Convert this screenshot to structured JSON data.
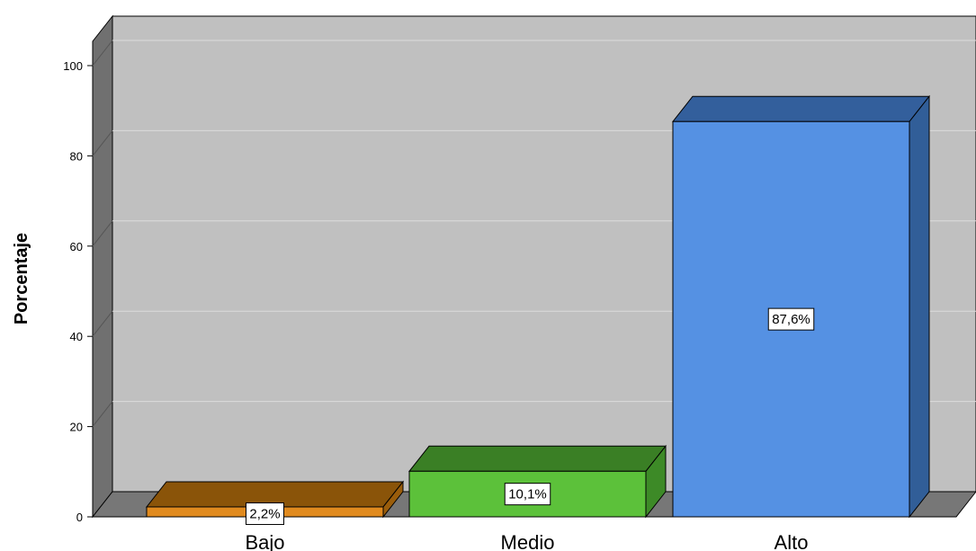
{
  "chart_data": {
    "type": "bar",
    "ylabel": "Porcentaje",
    "xlabel": "",
    "ylim": [
      0,
      100
    ],
    "yticks": [
      0,
      20,
      40,
      60,
      80,
      100
    ],
    "grid": true,
    "categories": [
      "Bajo",
      "Medio",
      "Alto"
    ],
    "values": [
      2.2,
      10.1,
      87.6
    ],
    "data_labels": [
      "2,2%",
      "10,1%",
      "87,6%"
    ],
    "colors": {
      "front": [
        "#e08a1e",
        "#5cc13a",
        "#5591e3"
      ],
      "top": [
        "#8a5409",
        "#3a7f25",
        "#335f9c"
      ],
      "side": [
        "#9a5d0b",
        "#3d8a27",
        "#315e98"
      ],
      "plot_back": "#c0c0c0",
      "plot_floor": "#777777",
      "plot_wall": "#707070",
      "gridline": "#dcdcdc"
    }
  }
}
